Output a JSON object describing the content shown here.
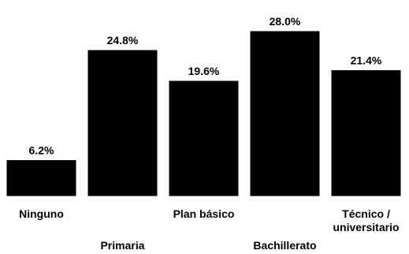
{
  "chart_data": {
    "type": "bar",
    "categories": [
      "Ninguno",
      "Primaria",
      "Plan básico",
      "Bachillerato",
      "Técnico /\nuniversitario"
    ],
    "values": [
      6.2,
      24.8,
      19.6,
      28.0,
      21.4
    ],
    "data_labels": [
      "6.2%",
      "24.8%",
      "19.6%",
      "28.0%",
      "21.4%"
    ],
    "title": "",
    "xlabel": "",
    "ylabel": "",
    "ylim": [
      0,
      30
    ],
    "grid": false,
    "legend": "none",
    "bar_color": "#000000"
  }
}
